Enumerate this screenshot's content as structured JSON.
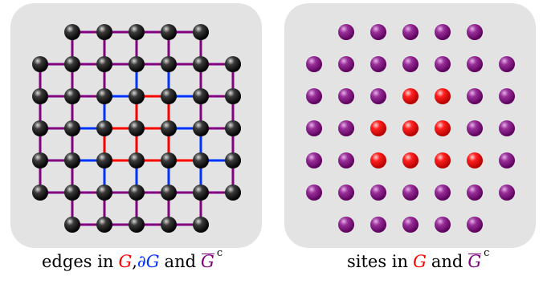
{
  "colors": {
    "panel": "#e3e3e3",
    "black_site": "#000000",
    "interior_edge": "#ff0000",
    "boundary_edge": "#0033ff",
    "complement": "#800080",
    "red_site": "#ff0000",
    "purple_site": "#800080"
  },
  "caption_left": {
    "prefix": "edges in",
    "G": "G",
    "comma": ",",
    "dG": "∂G",
    "and": "and",
    "Gbar": "G",
    "c": "c"
  },
  "caption_right": {
    "prefix": "sites in",
    "G": "G",
    "and": "and",
    "Gbar": "G",
    "c": "c"
  },
  "region_G": {
    "interior_sites": [
      [
        4,
        3
      ],
      [
        5,
        3
      ],
      [
        3,
        4
      ],
      [
        4,
        4
      ],
      [
        5,
        4
      ],
      [
        3,
        5
      ],
      [
        4,
        5
      ],
      [
        5,
        5
      ],
      [
        6,
        5
      ]
    ]
  }
}
